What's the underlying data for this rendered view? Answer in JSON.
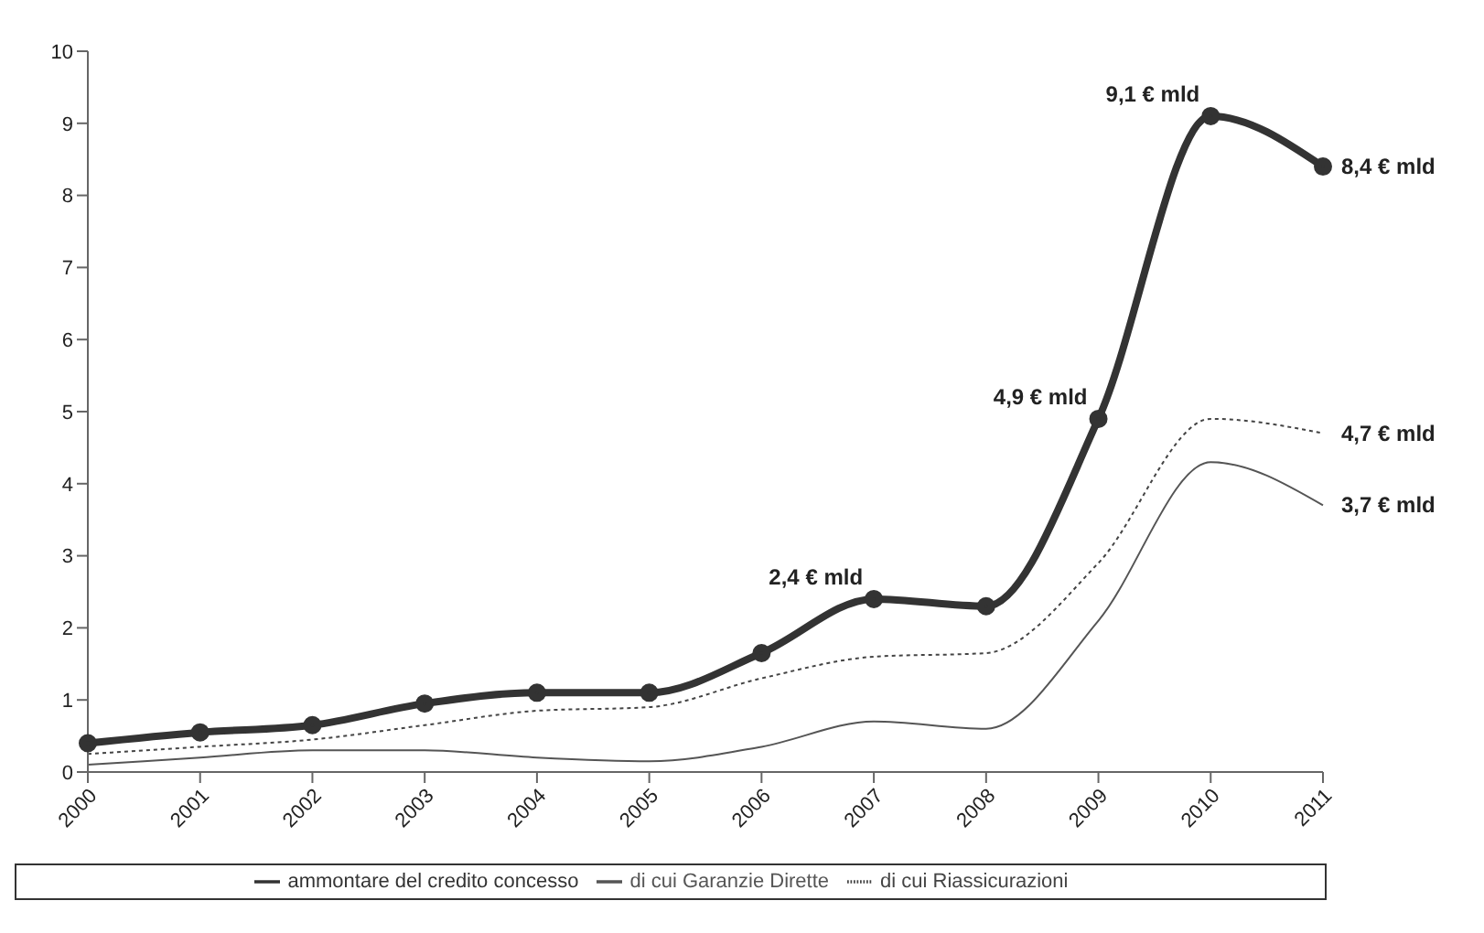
{
  "chart_data": {
    "type": "line",
    "categories": [
      "2000",
      "2001",
      "2002",
      "2003",
      "2004",
      "2005",
      "2006",
      "2007",
      "2008",
      "2009",
      "2010",
      "2011"
    ],
    "series": [
      {
        "name": "ammontare del credito concesso",
        "color": "#333333",
        "marker": "circle",
        "line_style": "solid",
        "values": [
          0.4,
          0.55,
          0.65,
          0.95,
          1.1,
          1.1,
          1.65,
          2.4,
          2.3,
          4.9,
          9.1,
          8.4
        ]
      },
      {
        "name": "di cui Riassicurazioni",
        "color": "#444444",
        "marker": "none",
        "line_style": "dotted",
        "values": [
          0.25,
          0.35,
          0.45,
          0.65,
          0.85,
          0.9,
          1.3,
          1.6,
          1.65,
          2.9,
          4.9,
          4.7
        ]
      },
      {
        "name": "di cui Garanzie Dirette",
        "color": "#555555",
        "marker": "none",
        "line_style": "solid",
        "values": [
          0.1,
          0.2,
          0.3,
          0.3,
          0.2,
          0.15,
          0.35,
          0.7,
          0.6,
          2.1,
          4.3,
          3.7
        ]
      }
    ],
    "ylim": [
      0,
      10
    ],
    "yticks": [
      0,
      1,
      2,
      3,
      4,
      5,
      6,
      7,
      8,
      9,
      10
    ],
    "grid": false,
    "legend": "bottom",
    "annotations": [
      {
        "text": "2,4 € mld",
        "x": "2007",
        "y": 2.4
      },
      {
        "text": "4,9 € mld",
        "x": "2009",
        "y": 4.9
      },
      {
        "text": "9,1 € mld",
        "x": "2010",
        "y": 9.1
      },
      {
        "text": "8,4 € mld",
        "x": "2011",
        "y": 8.4
      },
      {
        "text": "4,7 € mld",
        "x": "2011",
        "y": 4.7
      },
      {
        "text": "3,7 € mld",
        "x": "2011",
        "y": 3.7
      }
    ]
  }
}
